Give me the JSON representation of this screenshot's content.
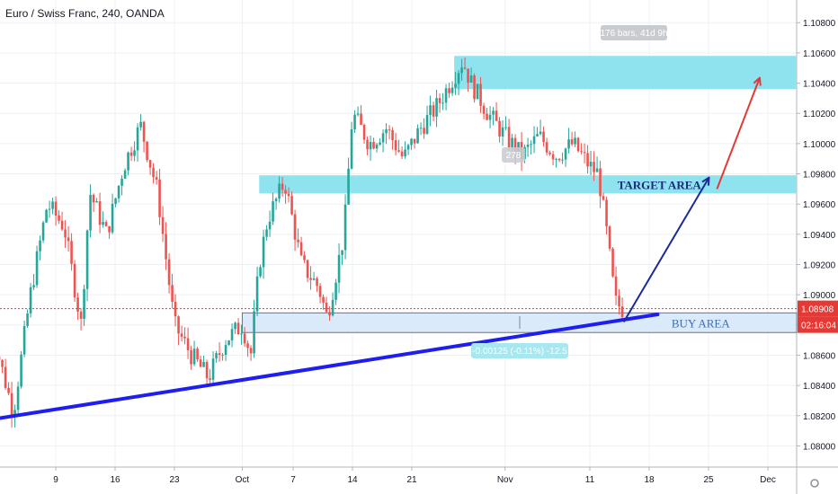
{
  "chart_title": "Euro / Swiss Franc, 240, OANDA",
  "colors": {
    "up": "#26a69a",
    "down": "#ef5350",
    "zone_fill": "#8fe3ef",
    "buy_fill": "#dbeafb",
    "trendline": "#1e1ef0",
    "arrow_blue": "#1a2a9c",
    "arrow_red": "#e53935",
    "price_badge": "#e53935",
    "grid": "#eef0f3"
  },
  "annotations": {
    "target_label": "TARGET AREA",
    "buy_label": "BUY AREA",
    "bars_label": "176 bars, 41d 9h",
    "bars_label_2": "278",
    "measure_label": "-0.00125 (-0.11%) -12.5"
  },
  "chart_data": {
    "type": "candlestick",
    "title": "Euro / Swiss Franc, 240, OANDA",
    "x_ticks": [
      "9",
      "16",
      "23",
      "Oct",
      "7",
      "14",
      "21",
      "Nov",
      "11",
      "18",
      "25",
      "Dec"
    ],
    "y_ticks": [
      "1.10800",
      "1.10600",
      "1.10400",
      "1.10200",
      "1.10000",
      "1.09800",
      "1.09600",
      "1.09400",
      "1.09200",
      "1.09000",
      "1.08800",
      "1.08600",
      "1.08400",
      "1.08200",
      "1.08000"
    ],
    "ylim": [
      1.0786,
      1.1095
    ],
    "last_price": "1.08908",
    "countdown": "02:16:04",
    "zones": [
      {
        "name": "TARGET AREA",
        "low": 1.0967,
        "high": 1.0979
      },
      {
        "name": "BUY AREA",
        "low": 1.0875,
        "high": 1.0888
      },
      {
        "name": "upper zone",
        "low": 1.1036,
        "high": 1.1058
      }
    ],
    "close_path": [
      [
        "9/2",
        1.0865
      ],
      [
        "9/4",
        1.0822
      ],
      [
        "9/6",
        1.09
      ],
      [
        "9/8",
        1.096
      ],
      [
        "9/10",
        1.0945
      ],
      [
        "9/12",
        1.088
      ],
      [
        "9/13",
        1.0968
      ],
      [
        "9/15",
        1.094
      ],
      [
        "9/17",
        1.0985
      ],
      [
        "9/19",
        1.1012
      ],
      [
        "9/21",
        1.0968
      ],
      [
        "9/23",
        1.088
      ],
      [
        "9/25",
        1.086
      ],
      [
        "9/27",
        1.0845
      ],
      [
        "9/29",
        1.087
      ],
      [
        "10/1",
        1.088
      ],
      [
        "10/2",
        1.086
      ],
      [
        "10/3",
        1.092
      ],
      [
        "10/4",
        1.095
      ],
      [
        "10/6",
        1.0975
      ],
      [
        "10/8",
        1.092
      ],
      [
        "10/10",
        1.0905
      ],
      [
        "10/11",
        1.0885
      ],
      [
        "10/13",
        1.094
      ],
      [
        "10/14",
        1.102
      ],
      [
        "10/16",
        1.1
      ],
      [
        "10/18",
        1.101
      ],
      [
        "10/20",
        1.099
      ],
      [
        "10/22",
        1.101
      ],
      [
        "10/24",
        1.1025
      ],
      [
        "10/26",
        1.1045
      ],
      [
        "10/27",
        1.1055
      ],
      [
        "10/28",
        1.104
      ],
      [
        "10/30",
        1.102
      ],
      [
        "11/1",
        1.1005
      ],
      [
        "11/3",
        1.0992
      ],
      [
        "11/5",
        1.1005
      ],
      [
        "11/7",
        1.0992
      ],
      [
        "11/9",
        1.1
      ],
      [
        "11/11",
        1.0985
      ],
      [
        "11/12",
        1.098
      ],
      [
        "11/13",
        1.094
      ],
      [
        "11/14",
        1.0895
      ],
      [
        "11/15",
        1.089
      ]
    ],
    "trendline": {
      "from": [
        "9/2",
        1.0818
      ],
      "to": [
        "11/19",
        1.0887
      ]
    },
    "projections": [
      {
        "color": "blue",
        "from": [
          "11/15",
          1.0882
        ],
        "to": [
          "11/25",
          1.0977
        ]
      },
      {
        "color": "red",
        "from": [
          "11/26",
          1.097
        ],
        "to": [
          "12/1",
          1.1043
        ]
      }
    ]
  }
}
